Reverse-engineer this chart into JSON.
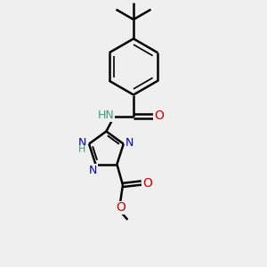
{
  "background_color": "#efefef",
  "bond_color": "#000000",
  "bond_width": 1.8,
  "N_color": "#0000bb",
  "NH_color": "#3a9a7a",
  "O_color": "#cc0000",
  "font_size": 9,
  "figsize": [
    3.0,
    3.0
  ],
  "dpi": 100,
  "xlim": [
    0,
    10
  ],
  "ylim": [
    0,
    10
  ]
}
